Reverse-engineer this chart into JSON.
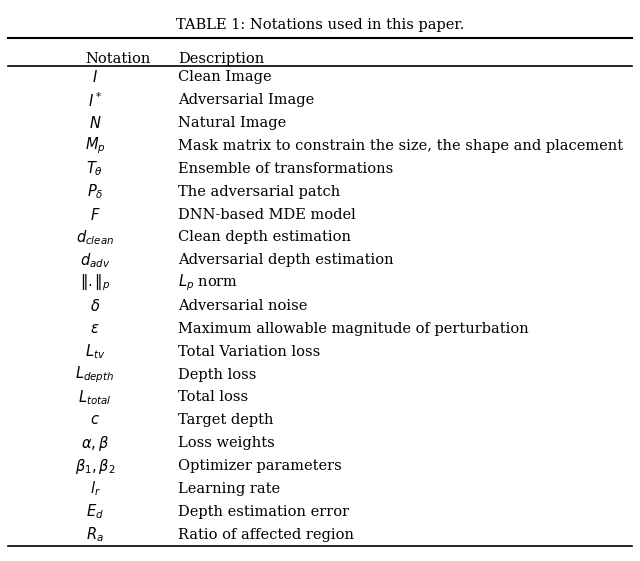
{
  "title": "TABLE 1: Notations used in this paper.",
  "rows": [
    [
      "$I$",
      "Clean Image"
    ],
    [
      "$I^*$",
      "Adversarial Image"
    ],
    [
      "$N$",
      "Natural Image"
    ],
    [
      "$M_p$",
      "Mask matrix to constrain the size, the shape and placement"
    ],
    [
      "$T_\\theta$",
      "Ensemble of transformations"
    ],
    [
      "$P_\\delta$",
      "The adversarial patch"
    ],
    [
      "$F$",
      "DNN-based MDE model"
    ],
    [
      "$d_{clean}$",
      "Clean depth estimation"
    ],
    [
      "$d_{adv}$",
      "Adversarial depth estimation"
    ],
    [
      "$\\|.\\|_p$",
      "$L_p$ norm"
    ],
    [
      "$\\delta$",
      "Adversarial noise"
    ],
    [
      "$\\epsilon$",
      "Maximum allowable magnitude of perturbation"
    ],
    [
      "$L_{tv}$",
      "Total Variation loss"
    ],
    [
      "$L_{depth}$",
      "Depth loss"
    ],
    [
      "$L_{total}$",
      "Total loss"
    ],
    [
      "$c$",
      "Target depth"
    ],
    [
      "$\\alpha, \\beta$",
      "Loss weights"
    ],
    [
      "$\\beta_1, \\beta_2$",
      "Optimizer parameters"
    ],
    [
      "$l_r$",
      "Learning rate"
    ],
    [
      "$E_d$",
      "Depth estimation error"
    ],
    [
      "$R_a$",
      "Ratio of affected region"
    ]
  ],
  "bg_color": "#ffffff",
  "text_color": "#000000",
  "title_fontsize": 10.5,
  "header_fontsize": 10.5,
  "row_fontsize": 10.5,
  "figsize": [
    6.4,
    5.61
  ],
  "dpi": 100
}
